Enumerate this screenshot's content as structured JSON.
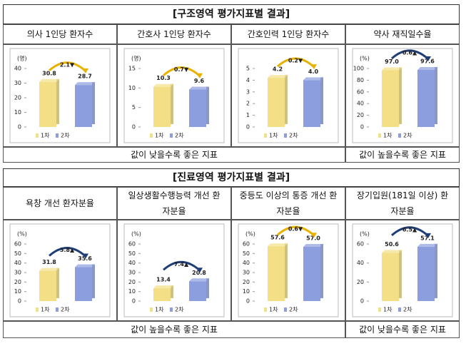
{
  "sections": [
    {
      "title": "[구조영역 평가지표별 결과]",
      "notes": [
        "값이 낮을수록 좋은 지표",
        "값이 높을수록 좋은 지표"
      ]
    },
    {
      "title": "[진료영역 평가지표별 결과]",
      "notes": [
        "값이 높을수록 좋은 지표",
        "값이 낮을수록 좋은 지표"
      ]
    }
  ],
  "chart_data": [
    {
      "type": "bar",
      "title": "의사 1인당 환자수",
      "y_unit": "(명)",
      "categories": [
        "1차",
        "2차"
      ],
      "values": [
        30.8,
        28.7
      ],
      "value_labels": [
        "30.8",
        "28.7"
      ],
      "colors": [
        "#f3df86",
        "#8c9ede"
      ],
      "ylim": [
        0,
        40
      ],
      "yticks": [
        0,
        10,
        20,
        30,
        40
      ],
      "annotation": "2.1▼",
      "annotation_color": "#e9b200"
    },
    {
      "type": "bar",
      "title": "간호사 1인당 환자수",
      "y_unit": "(명)",
      "categories": [
        "1차",
        "2차"
      ],
      "values": [
        10.3,
        9.6
      ],
      "value_labels": [
        "10.3",
        "9.6"
      ],
      "colors": [
        "#f3df86",
        "#8c9ede"
      ],
      "ylim": [
        0,
        15
      ],
      "yticks": [
        0,
        5,
        10,
        15
      ],
      "annotation": "0.7▼",
      "annotation_color": "#e9b200"
    },
    {
      "type": "bar",
      "title": "간호인력 1인당 환자수",
      "categories": [
        "1차",
        "2차"
      ],
      "values": [
        4.2,
        4.0
      ],
      "value_labels": [
        "4.2",
        "4.0"
      ],
      "colors": [
        "#f3df86",
        "#8c9ede"
      ],
      "ylim": [
        0,
        5
      ],
      "yticks": [
        0,
        1,
        2,
        3,
        4,
        5
      ],
      "annotation": "0.2▼",
      "annotation_color": "#e9b200"
    },
    {
      "type": "bar",
      "title": "약사 재직일수율",
      "y_unit": "(%)",
      "categories": [
        "1차",
        "2차"
      ],
      "values": [
        97.0,
        97.6
      ],
      "value_labels": [
        "97.0",
        "97.6"
      ],
      "colors": [
        "#f3df86",
        "#8c9ede"
      ],
      "ylim": [
        0,
        100
      ],
      "yticks": [
        0,
        20,
        40,
        60,
        80,
        100
      ],
      "annotation": "0.6▲",
      "annotation_color": "#1f3e78"
    },
    {
      "type": "bar",
      "title": "욕창 개선 환자분율",
      "y_unit": "(%)",
      "categories": [
        "1차",
        "2차"
      ],
      "values": [
        31.8,
        35.6
      ],
      "value_labels": [
        "31.8",
        "35.6"
      ],
      "colors": [
        "#f3df86",
        "#8c9ede"
      ],
      "ylim": [
        0,
        60
      ],
      "yticks": [
        0,
        10,
        20,
        30,
        40,
        50,
        60
      ],
      "annotation": "3.8▲",
      "annotation_color": "#1f3e78"
    },
    {
      "type": "bar",
      "title": "일상생활수행능력 개선 환자분율",
      "y_unit": "(%)",
      "categories": [
        "1차",
        "2차"
      ],
      "values": [
        13.4,
        20.8
      ],
      "value_labels": [
        "13.4",
        "20.8"
      ],
      "colors": [
        "#f3df86",
        "#8c9ede"
      ],
      "ylim": [
        0,
        60
      ],
      "yticks": [
        0,
        10,
        20,
        30,
        40,
        50,
        60
      ],
      "annotation": "7.4▲",
      "annotation_color": "#1f3e78"
    },
    {
      "type": "bar",
      "title": "중등도 이상의 통증 개선 환자분율",
      "y_unit": "(%)",
      "categories": [
        "1차",
        "2차"
      ],
      "values": [
        57.6,
        57.0
      ],
      "value_labels": [
        "57.6",
        "57.0"
      ],
      "colors": [
        "#f3df86",
        "#8c9ede"
      ],
      "ylim": [
        0,
        60
      ],
      "yticks": [
        0,
        10,
        20,
        30,
        40,
        50,
        60
      ],
      "annotation": "0.6▼",
      "annotation_color": "#e9b200"
    },
    {
      "type": "bar",
      "title": "장기입원(181일 이상) 환자분율",
      "y_unit": "(%)",
      "categories": [
        "1차",
        "2차"
      ],
      "values": [
        50.6,
        57.1
      ],
      "value_labels": [
        "50.6",
        "57.1"
      ],
      "colors": [
        "#f3df86",
        "#8c9ede"
      ],
      "ylim": [
        0,
        60
      ],
      "yticks": [
        0,
        20,
        40,
        60
      ],
      "annotation": "6.5▲",
      "annotation_color": "#1f3e78"
    }
  ]
}
